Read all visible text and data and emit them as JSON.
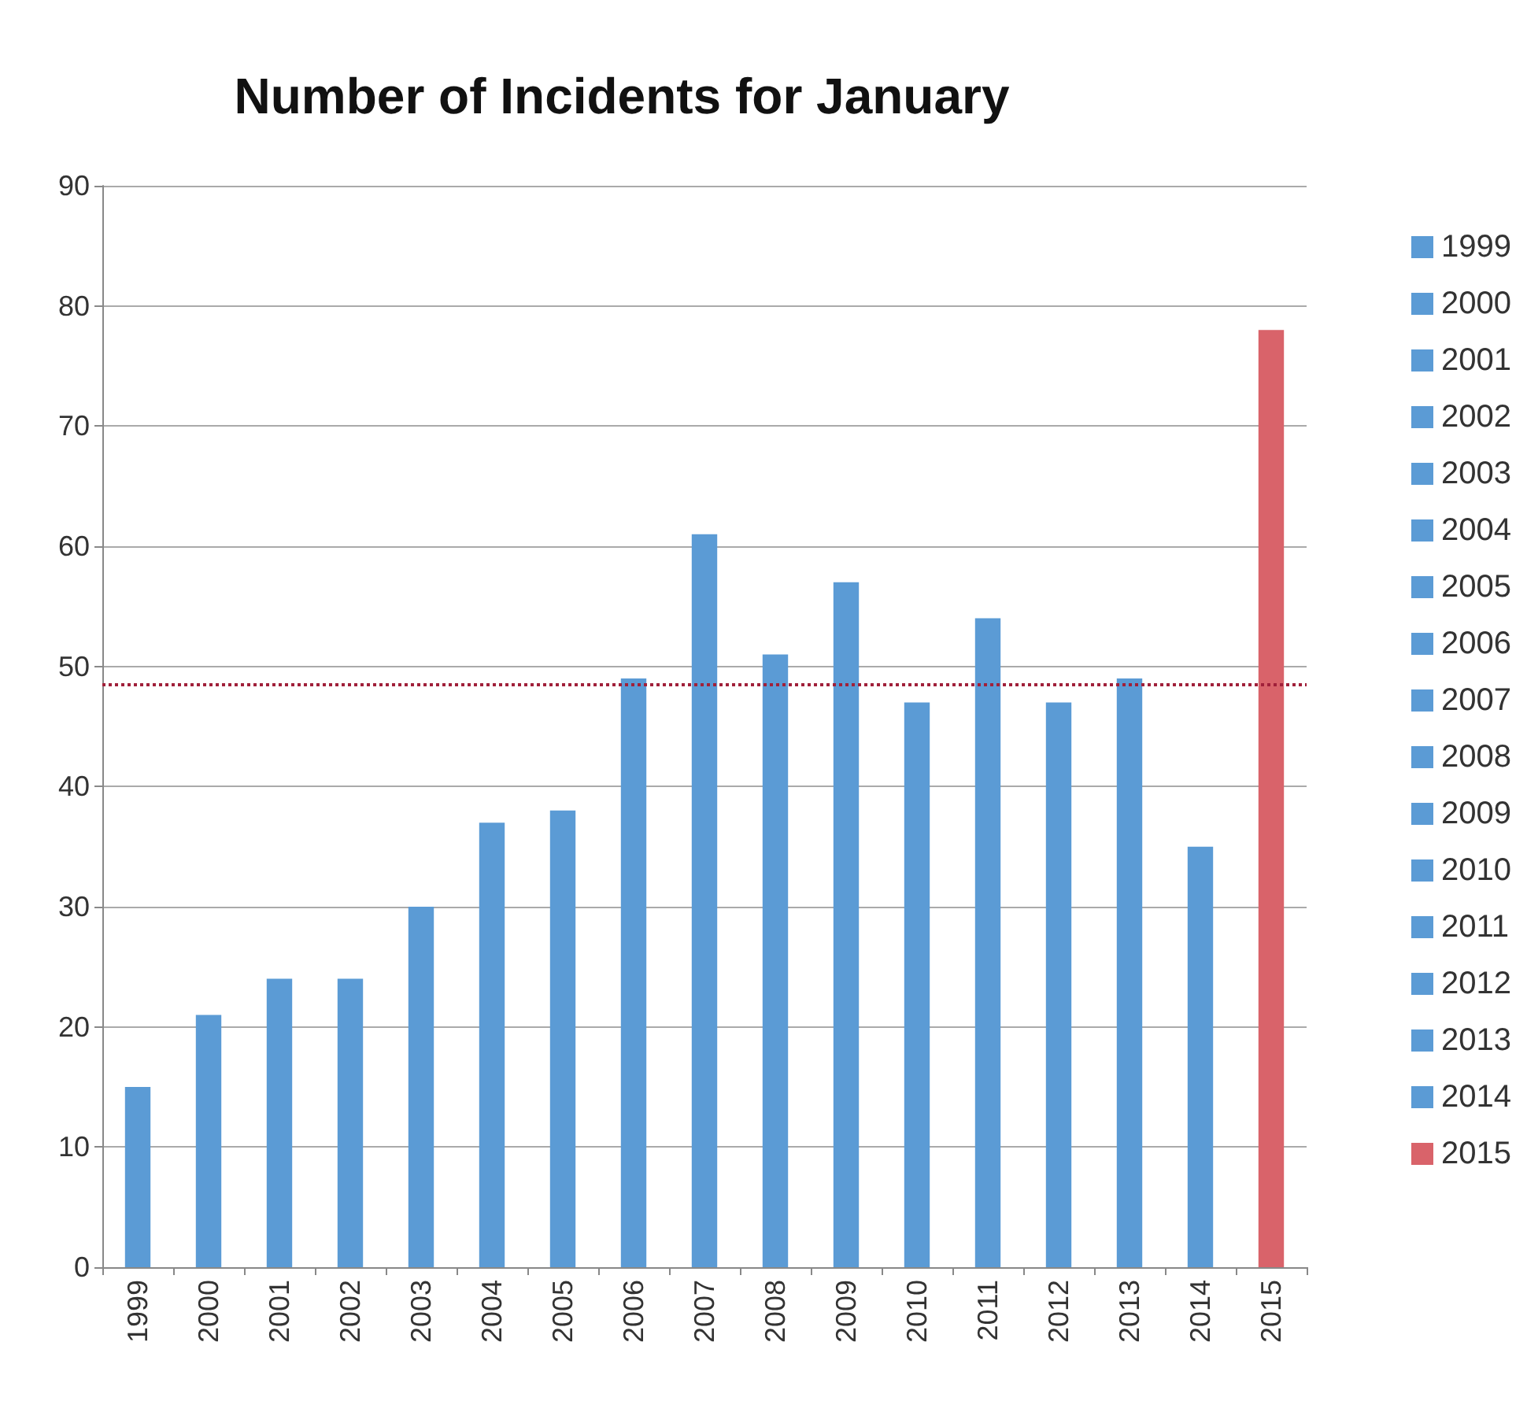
{
  "chart_data": {
    "type": "bar",
    "title": "Number of Incidents for January",
    "categories": [
      "1999",
      "2000",
      "2001",
      "2002",
      "2003",
      "2004",
      "2005",
      "2006",
      "2007",
      "2008",
      "2009",
      "2010",
      "2011",
      "2012",
      "2013",
      "2014",
      "2015"
    ],
    "stacked": true,
    "series": [
      {
        "name": "1999",
        "color": "#5b9bd5",
        "values": [
          15,
          null,
          null,
          null,
          null,
          null,
          null,
          null,
          null,
          null,
          null,
          null,
          null,
          null,
          null,
          null,
          null
        ]
      },
      {
        "name": "2000",
        "color": "#5b9bd5",
        "values": [
          null,
          21,
          null,
          null,
          null,
          null,
          null,
          null,
          null,
          null,
          null,
          null,
          null,
          null,
          null,
          null,
          null
        ]
      },
      {
        "name": "2001",
        "color": "#5b9bd5",
        "values": [
          null,
          null,
          24,
          null,
          null,
          null,
          null,
          null,
          null,
          null,
          null,
          null,
          null,
          null,
          null,
          null,
          null
        ]
      },
      {
        "name": "2002",
        "color": "#5b9bd5",
        "values": [
          null,
          null,
          null,
          24,
          null,
          null,
          null,
          null,
          null,
          null,
          null,
          null,
          null,
          null,
          null,
          null,
          null
        ]
      },
      {
        "name": "2003",
        "color": "#5b9bd5",
        "values": [
          null,
          null,
          null,
          null,
          30,
          null,
          null,
          null,
          null,
          null,
          null,
          null,
          null,
          null,
          null,
          null,
          null
        ]
      },
      {
        "name": "2004",
        "color": "#5b9bd5",
        "values": [
          null,
          null,
          null,
          null,
          null,
          37,
          null,
          null,
          null,
          null,
          null,
          null,
          null,
          null,
          null,
          null,
          null
        ]
      },
      {
        "name": "2005",
        "color": "#5b9bd5",
        "values": [
          null,
          null,
          null,
          null,
          null,
          null,
          38,
          null,
          null,
          null,
          null,
          null,
          null,
          null,
          null,
          null,
          null
        ]
      },
      {
        "name": "2006",
        "color": "#5b9bd5",
        "values": [
          null,
          null,
          null,
          null,
          null,
          null,
          null,
          49,
          null,
          null,
          null,
          null,
          null,
          null,
          null,
          null,
          null
        ]
      },
      {
        "name": "2007",
        "color": "#5b9bd5",
        "values": [
          null,
          null,
          null,
          null,
          null,
          null,
          null,
          null,
          61,
          null,
          null,
          null,
          null,
          null,
          null,
          null,
          null
        ]
      },
      {
        "name": "2008",
        "color": "#5b9bd5",
        "values": [
          null,
          null,
          null,
          null,
          null,
          null,
          null,
          null,
          null,
          51,
          null,
          null,
          null,
          null,
          null,
          null,
          null
        ]
      },
      {
        "name": "2009",
        "color": "#5b9bd5",
        "values": [
          null,
          null,
          null,
          null,
          null,
          null,
          null,
          null,
          null,
          null,
          57,
          null,
          null,
          null,
          null,
          null,
          null
        ]
      },
      {
        "name": "2010",
        "color": "#5b9bd5",
        "values": [
          null,
          null,
          null,
          null,
          null,
          null,
          null,
          null,
          null,
          null,
          null,
          47,
          null,
          null,
          null,
          null,
          null
        ]
      },
      {
        "name": "2011",
        "color": "#5b9bd5",
        "values": [
          null,
          null,
          null,
          null,
          null,
          null,
          null,
          null,
          null,
          null,
          null,
          null,
          54,
          null,
          null,
          null,
          null
        ]
      },
      {
        "name": "2012",
        "color": "#5b9bd5",
        "values": [
          null,
          null,
          null,
          null,
          null,
          null,
          null,
          null,
          null,
          null,
          null,
          null,
          null,
          47,
          null,
          null,
          null
        ]
      },
      {
        "name": "2013",
        "color": "#5b9bd5",
        "values": [
          null,
          null,
          null,
          null,
          null,
          null,
          null,
          null,
          null,
          null,
          null,
          null,
          null,
          null,
          49,
          null,
          null
        ]
      },
      {
        "name": "2014",
        "color": "#5b9bd5",
        "values": [
          null,
          null,
          null,
          null,
          null,
          null,
          null,
          null,
          null,
          null,
          null,
          null,
          null,
          null,
          null,
          35,
          null
        ]
      },
      {
        "name": "2015",
        "color": "#d9636a",
        "values": [
          null,
          null,
          null,
          null,
          null,
          null,
          null,
          null,
          null,
          null,
          null,
          null,
          null,
          null,
          null,
          null,
          78
        ]
      }
    ],
    "ylim": [
      0,
      90
    ],
    "yticks": [
      0,
      10,
      20,
      30,
      40,
      50,
      60,
      70,
      80,
      90
    ],
    "grid": "y",
    "legend": "right",
    "ref_lines": [
      {
        "axis": "y",
        "value": 48.5,
        "color": "#a0203a",
        "line_style": "dotted"
      }
    ]
  }
}
